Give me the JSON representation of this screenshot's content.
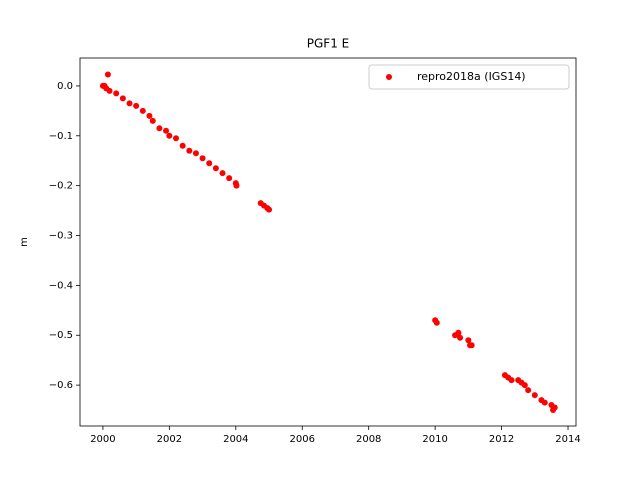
{
  "chart_data": {
    "type": "scatter",
    "title": "PGF1 E",
    "y_label": "m",
    "x": [
      2000.0,
      2000.05,
      2000.1,
      2000.15,
      2000.2,
      2000.4,
      2000.6,
      2000.8,
      2001.0,
      2001.2,
      2001.4,
      2001.5,
      2001.7,
      2001.9,
      2002.0,
      2002.2,
      2002.4,
      2002.6,
      2002.8,
      2003.0,
      2003.2,
      2003.4,
      2003.6,
      2003.8,
      2004.0,
      2004.02,
      2004.75,
      2004.85,
      2004.95,
      2005.0,
      2010.0,
      2010.05,
      2010.6,
      2010.7,
      2010.75,
      2011.0,
      2011.05,
      2011.1,
      2012.1,
      2012.2,
      2012.3,
      2012.5,
      2012.6,
      2012.7,
      2012.8,
      2013.0,
      2013.2,
      2013.3,
      2013.5,
      2013.55,
      2013.6
    ],
    "series": [
      {
        "name": "repro2018a (IGS14)",
        "color": "#ff0000",
        "values": [
          0.0,
          0.0,
          -0.005,
          0.023,
          -0.01,
          -0.015,
          -0.025,
          -0.035,
          -0.04,
          -0.05,
          -0.06,
          -0.07,
          -0.085,
          -0.09,
          -0.1,
          -0.105,
          -0.12,
          -0.13,
          -0.135,
          -0.145,
          -0.155,
          -0.165,
          -0.175,
          -0.185,
          -0.195,
          -0.2,
          -0.235,
          -0.24,
          -0.245,
          -0.248,
          -0.47,
          -0.475,
          -0.5,
          -0.495,
          -0.505,
          -0.51,
          -0.52,
          -0.52,
          -0.58,
          -0.585,
          -0.59,
          -0.59,
          -0.595,
          -0.6,
          -0.61,
          -0.62,
          -0.63,
          -0.635,
          -0.64,
          -0.65,
          -0.645
        ]
      }
    ],
    "xlim": [
      1999.31,
      2014.24
    ],
    "ylim": [
      -0.682,
      0.056
    ],
    "xticks": [
      2000,
      2002,
      2004,
      2006,
      2008,
      2010,
      2012,
      2014
    ],
    "yticks": [
      {
        "value": 0.0,
        "label": "0.0"
      },
      {
        "value": -0.1,
        "label": "−0.1"
      },
      {
        "value": -0.2,
        "label": "−0.2"
      },
      {
        "value": -0.3,
        "label": "−0.3"
      },
      {
        "value": -0.4,
        "label": "−0.4"
      },
      {
        "value": -0.5,
        "label": "−0.5"
      },
      {
        "value": -0.6,
        "label": "−0.6"
      }
    ],
    "legend": "upper right"
  }
}
